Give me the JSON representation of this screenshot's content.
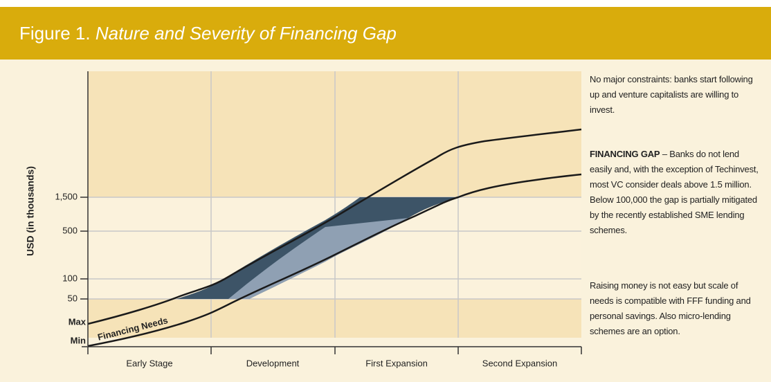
{
  "header": {
    "figure": "Figure 1.",
    "title": "Nature and Severity of Financing Gap"
  },
  "y_axis": {
    "label": "USD (in thousands)",
    "ticks": [
      "1,500",
      "500",
      "100",
      "50",
      "Max",
      "Min"
    ]
  },
  "stages": [
    "Early Stage",
    "Development",
    "First Expansion",
    "Second Expansion"
  ],
  "curve_label": "Financing Needs",
  "notes": [
    "No major constraints: banks start following up and venture capitalists are willing to invest.",
    {
      "bold": "FINANCING GAP",
      "text": " – Banks do not lend easily and, with the exception of Techinvest, most VC consider deals above 1.5 million. Below 100,000 the gap is partially mitigated by the recently established SME lending schemes."
    },
    "Raising money is not easy but scale of needs is compatible with FFF funding and personal savings. Also micro-lending schemes are an option."
  ]
}
